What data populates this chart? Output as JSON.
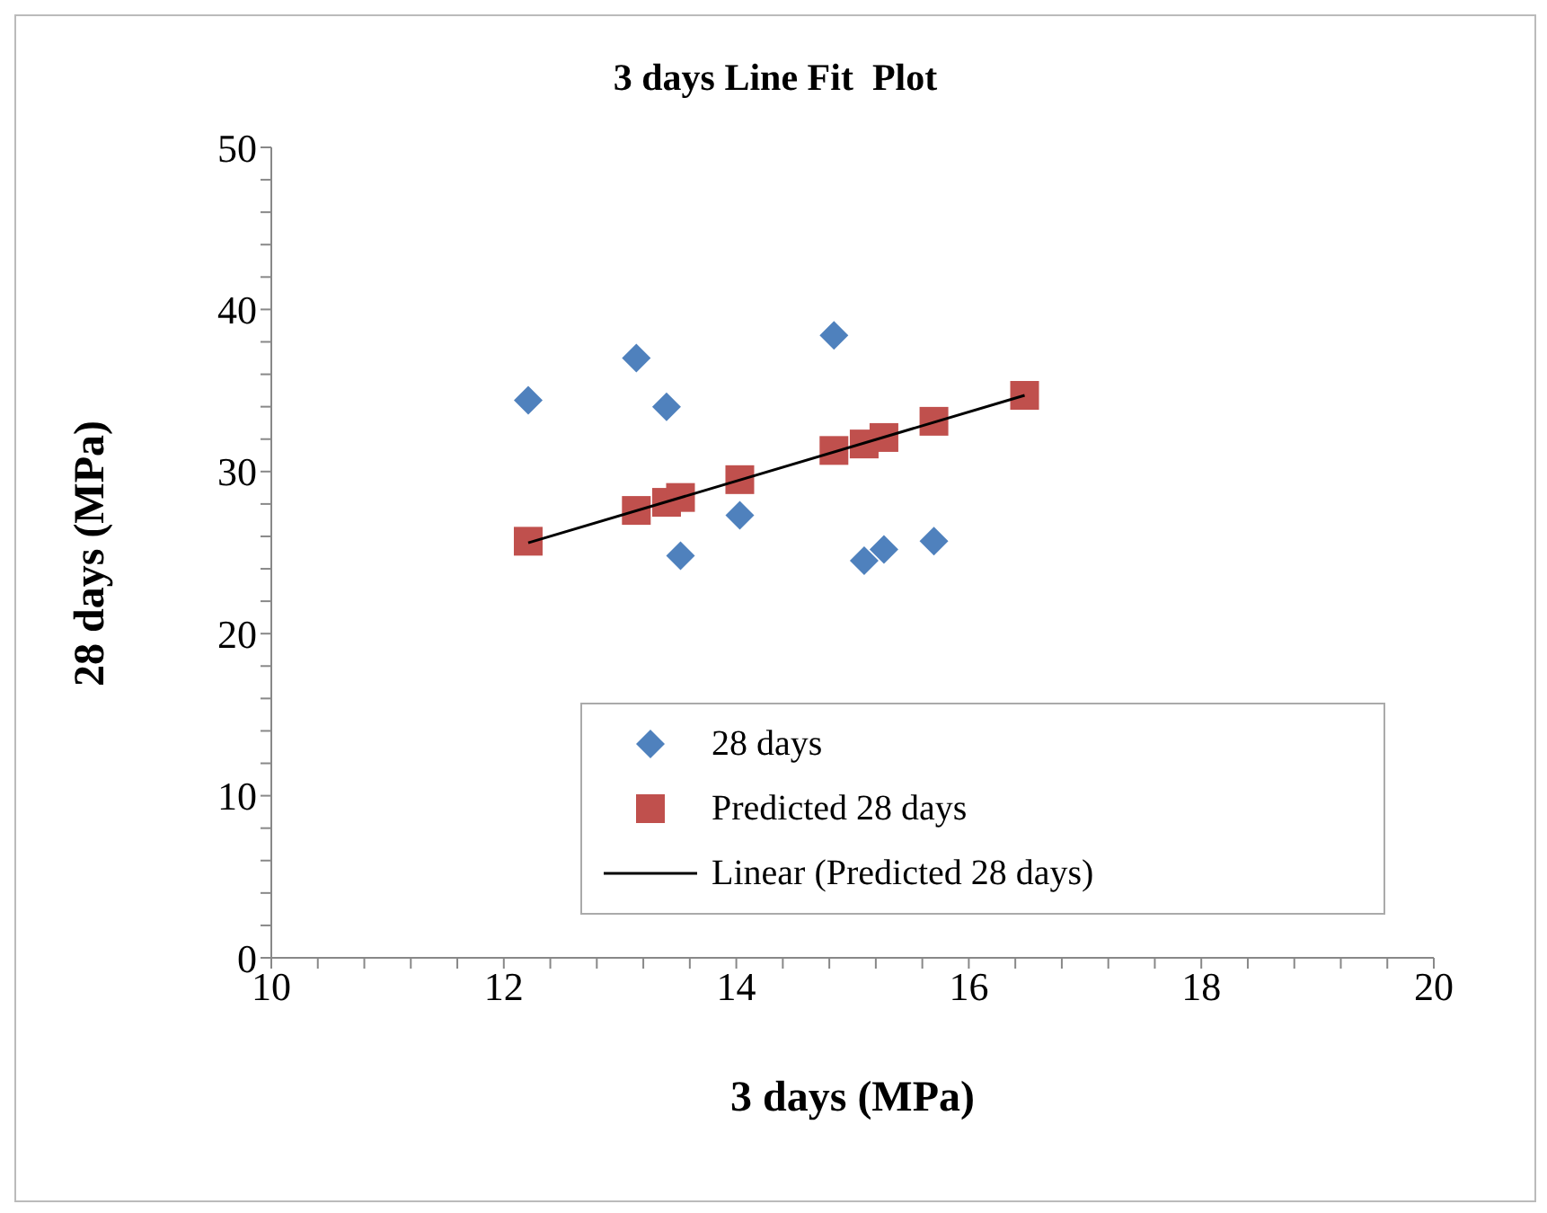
{
  "chart_data": {
    "type": "scatter",
    "title": "3 days Line Fit  Plot",
    "xlabel": "3 days (MPa)",
    "ylabel": "28 days (MPa)",
    "x": [
      12.21,
      13.14,
      13.4,
      13.52,
      14.03,
      14.84,
      15.1,
      15.27,
      15.7,
      16.48
    ],
    "series": [
      {
        "name": "28 days",
        "color": "#4f81bd",
        "marker": "diamond",
        "values": [
          34.4,
          37.0,
          34.0,
          24.8,
          27.3,
          38.4,
          24.5,
          25.2,
          25.7,
          null
        ]
      },
      {
        "name": "Predicted 28 days",
        "color": "#c0504d",
        "marker": "square",
        "values": [
          25.7,
          27.6,
          28.1,
          28.4,
          29.5,
          31.3,
          31.7,
          32.1,
          33.1,
          34.7
        ]
      },
      {
        "name": "Linear (Predicted 28 days)",
        "type": "line",
        "color": "#000000",
        "marker": "none",
        "x": [
          12.21,
          16.48
        ],
        "values": [
          25.6,
          34.7
        ]
      }
    ],
    "xlim": [
      10,
      20
    ],
    "xticks": [
      10,
      {
        "value": 10.4,
        "label": null
      },
      {
        "value": 10.8,
        "label": null
      },
      {
        "value": 11.2,
        "label": null
      },
      {
        "value": 11.6,
        "label": null
      },
      12,
      {
        "value": 12.4,
        "label": null
      },
      {
        "value": 12.8,
        "label": null
      },
      {
        "value": 13.2,
        "label": null
      },
      {
        "value": 13.6,
        "label": null
      },
      14,
      {
        "value": 14.4,
        "label": null
      },
      {
        "value": 14.8,
        "label": null
      },
      {
        "value": 15.2,
        "label": null
      },
      {
        "value": 15.6,
        "label": null
      },
      16,
      {
        "value": 16.4,
        "label": null
      },
      {
        "value": 16.8,
        "label": null
      },
      {
        "value": 17.2,
        "label": null
      },
      {
        "value": 17.6,
        "label": null
      },
      18,
      {
        "value": 18.4,
        "label": null
      },
      {
        "value": 18.8,
        "label": null
      },
      {
        "value": 19.2,
        "label": null
      },
      {
        "value": 19.6,
        "label": null
      },
      20
    ],
    "ylim": [
      0,
      50
    ],
    "yticks": [
      0,
      {
        "value": 2,
        "label": null
      },
      {
        "value": 4,
        "label": null
      },
      {
        "value": 6,
        "label": null
      },
      {
        "value": 8,
        "label": null
      },
      10,
      {
        "value": 12,
        "label": null
      },
      {
        "value": 14,
        "label": null
      },
      {
        "value": 16,
        "label": null
      },
      {
        "value": 18,
        "label": null
      },
      20,
      {
        "value": 22,
        "label": null
      },
      {
        "value": 24,
        "label": null
      },
      {
        "value": 26,
        "label": null
      },
      {
        "value": 28,
        "label": null
      },
      30,
      {
        "value": 32,
        "label": null
      },
      {
        "value": 34,
        "label": null
      },
      {
        "value": 36,
        "label": null
      },
      {
        "value": 38,
        "label": null
      },
      40,
      {
        "value": 42,
        "label": null
      },
      {
        "value": 44,
        "label": null
      },
      {
        "value": 46,
        "label": null
      },
      {
        "value": 48,
        "label": null
      },
      50
    ],
    "grid": false,
    "legend": "bottom right"
  }
}
